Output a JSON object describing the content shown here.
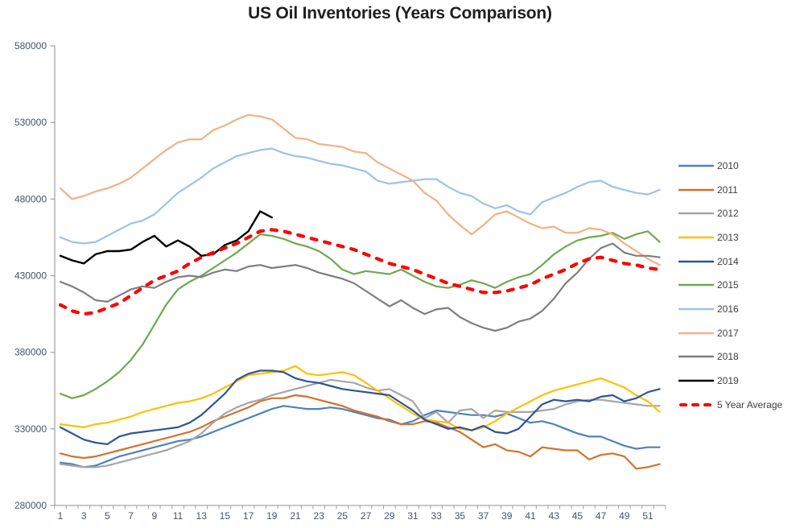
{
  "chart_data": {
    "type": "line",
    "title": "US Oil Inventories (Years Comparison)",
    "xlabel": "",
    "ylabel": "",
    "x_unit": "week_of_year",
    "x_range": [
      1,
      52
    ],
    "x_tick_labels": [
      1,
      3,
      5,
      7,
      9,
      11,
      13,
      15,
      17,
      19,
      21,
      23,
      25,
      27,
      29,
      31,
      33,
      35,
      37,
      39,
      41,
      43,
      45,
      47,
      49,
      51
    ],
    "ylim": [
      280000,
      580000
    ],
    "y_tick_step": 50000,
    "y_tick_labels": [
      "280000",
      "330000",
      "380000",
      "430000",
      "480000",
      "530000",
      "580000"
    ],
    "grid": false,
    "legend_position": "right",
    "axis_color": "#a6a6a6",
    "axis_label_color": "#44546a",
    "series": [
      {
        "name": "2010",
        "color": "#4E81BD",
        "dashed": false,
        "width": 2.2,
        "values": [
          308000,
          307000,
          305000,
          306000,
          309000,
          312000,
          314000,
          316000,
          318000,
          320000,
          322000,
          323000,
          325000,
          328000,
          331000,
          334000,
          337000,
          340000,
          343000,
          345000,
          344000,
          343000,
          343000,
          344000,
          343000,
          341000,
          339000,
          337000,
          336000,
          333000,
          335000,
          339000,
          342000,
          341000,
          340000,
          339000,
          339000,
          338000,
          340000,
          337000,
          334000,
          335000,
          333000,
          330000,
          327000,
          325000,
          325000,
          322000,
          319000,
          317000,
          318000,
          318000
        ]
      },
      {
        "name": "2011",
        "color": "#D4722C",
        "dashed": false,
        "width": 2.2,
        "values": [
          314000,
          312000,
          311000,
          312000,
          314000,
          316000,
          318000,
          320000,
          322000,
          324000,
          326000,
          328000,
          331000,
          335000,
          338000,
          341000,
          344000,
          348000,
          350000,
          350000,
          352000,
          351000,
          349000,
          347000,
          345000,
          342000,
          340000,
          338000,
          335000,
          333000,
          333000,
          335000,
          334000,
          331000,
          328000,
          323000,
          318000,
          320000,
          316000,
          315000,
          312000,
          318000,
          317000,
          316000,
          316000,
          310000,
          313000,
          314000,
          312000,
          304000,
          305000,
          307000
        ]
      },
      {
        "name": "2012",
        "color": "#A6A6A6",
        "dashed": false,
        "width": 2.2,
        "values": [
          307000,
          306000,
          305000,
          305000,
          306000,
          308000,
          310000,
          312000,
          314000,
          316000,
          319000,
          322000,
          327000,
          334000,
          340000,
          344000,
          347000,
          349000,
          352000,
          354000,
          356000,
          358000,
          360000,
          362000,
          361000,
          360000,
          357000,
          355000,
          356000,
          352000,
          348000,
          337000,
          341000,
          334000,
          342000,
          343000,
          337000,
          342000,
          341000,
          341000,
          341000,
          342000,
          343000,
          346000,
          348000,
          349000,
          349000,
          348000,
          347000,
          346000,
          345000,
          345000
        ]
      },
      {
        "name": "2013",
        "color": "#FFC000",
        "dashed": false,
        "width": 2.2,
        "values": [
          333000,
          332000,
          331000,
          333000,
          334000,
          336000,
          338000,
          341000,
          343000,
          345000,
          347000,
          348000,
          350000,
          353000,
          357000,
          361000,
          365000,
          366000,
          367000,
          368000,
          371000,
          366000,
          365000,
          366000,
          367000,
          365000,
          360000,
          355000,
          350000,
          345000,
          340000,
          336000,
          335000,
          334000,
          330000,
          329000,
          331000,
          335000,
          340000,
          344000,
          348000,
          352000,
          355000,
          357000,
          359000,
          361000,
          363000,
          360000,
          357000,
          352000,
          348000,
          341000
        ]
      },
      {
        "name": "2014",
        "color": "#2E5597",
        "dashed": false,
        "width": 2.2,
        "values": [
          331000,
          327000,
          323000,
          321000,
          320000,
          325000,
          327000,
          328000,
          329000,
          330000,
          331000,
          334000,
          339000,
          346000,
          353000,
          362000,
          366000,
          368000,
          368000,
          367000,
          363000,
          361000,
          360000,
          358000,
          356000,
          355000,
          354000,
          353000,
          352000,
          347000,
          342000,
          336000,
          333000,
          330000,
          331000,
          329000,
          332000,
          328000,
          327000,
          330000,
          338000,
          346000,
          349000,
          348000,
          349000,
          348000,
          351000,
          352000,
          348000,
          350000,
          354000,
          356000
        ]
      },
      {
        "name": "2015",
        "color": "#6FA84F",
        "dashed": false,
        "width": 2.2,
        "values": [
          353000,
          350000,
          352000,
          356000,
          361000,
          367000,
          375000,
          385000,
          398000,
          411000,
          421000,
          426000,
          430000,
          435000,
          440000,
          445000,
          451000,
          457000,
          456000,
          454000,
          451000,
          449000,
          446000,
          441000,
          434000,
          431000,
          433000,
          432000,
          431000,
          434000,
          430000,
          426000,
          423000,
          422000,
          424000,
          427000,
          425000,
          422000,
          426000,
          429000,
          431000,
          437000,
          444000,
          449000,
          453000,
          455000,
          456000,
          458000,
          454000,
          457000,
          459000,
          452000
        ]
      },
      {
        "name": "2016",
        "color": "#9DC3E6",
        "dashed": false,
        "width": 2.2,
        "values": [
          455000,
          452000,
          451000,
          452000,
          456000,
          460000,
          464000,
          466000,
          470000,
          477000,
          484000,
          489000,
          494000,
          500000,
          504000,
          508000,
          510000,
          512000,
          513000,
          510000,
          508000,
          507000,
          505000,
          503000,
          502000,
          500000,
          498000,
          492000,
          490000,
          491000,
          492000,
          493000,
          493000,
          488000,
          484000,
          482000,
          477000,
          474000,
          476000,
          472000,
          470000,
          478000,
          481000,
          484000,
          488000,
          491000,
          492000,
          488000,
          486000,
          484000,
          483000,
          486000
        ]
      },
      {
        "name": "2017",
        "color": "#F4B183",
        "dashed": false,
        "width": 2.2,
        "values": [
          487000,
          480000,
          482000,
          485000,
          487000,
          490000,
          494000,
          500000,
          506000,
          512000,
          517000,
          519000,
          519000,
          525000,
          528000,
          532000,
          535000,
          534000,
          532000,
          526000,
          520000,
          519000,
          516000,
          515000,
          514000,
          511000,
          510000,
          504000,
          500000,
          496000,
          492000,
          484000,
          479000,
          470000,
          463000,
          457000,
          463000,
          470000,
          472000,
          468000,
          464000,
          461000,
          462000,
          458000,
          458000,
          461000,
          460000,
          457000,
          451000,
          446000,
          441000,
          437000
        ]
      },
      {
        "name": "2018",
        "color": "#7F7F7F",
        "dashed": false,
        "width": 2.2,
        "values": [
          426000,
          423000,
          419000,
          414000,
          413000,
          417000,
          421000,
          423000,
          422000,
          426000,
          429000,
          430000,
          429000,
          432000,
          434000,
          433000,
          436000,
          437000,
          435000,
          436000,
          437000,
          435000,
          432000,
          430000,
          428000,
          425000,
          420000,
          415000,
          410000,
          414000,
          409000,
          405000,
          408000,
          409000,
          403000,
          399000,
          396000,
          394000,
          396000,
          400000,
          402000,
          407000,
          415000,
          425000,
          432000,
          441000,
          448000,
          451000,
          445000,
          443000,
          443000,
          442000
        ]
      },
      {
        "name": "2019",
        "color": "#000000",
        "dashed": false,
        "width": 2.4,
        "values": [
          443000,
          440000,
          438000,
          444000,
          446000,
          446000,
          447000,
          452000,
          456000,
          449000,
          453000,
          449000,
          443000,
          444000,
          450000,
          453000,
          459000,
          472000,
          468000
        ]
      },
      {
        "name": "5 Year Average",
        "color": "#FF0000",
        "dashed": true,
        "width": 4.2,
        "values": [
          411000,
          407000,
          405000,
          406000,
          409000,
          412000,
          417000,
          422000,
          427000,
          430000,
          433000,
          438000,
          442000,
          445000,
          448000,
          451000,
          455000,
          459000,
          460000,
          459000,
          457000,
          455000,
          453000,
          451000,
          449000,
          447000,
          444000,
          441000,
          438000,
          436000,
          434000,
          431000,
          428000,
          425000,
          423000,
          421000,
          419000,
          419000,
          420000,
          422000,
          424000,
          428000,
          431000,
          434000,
          438000,
          441000,
          442000,
          440000,
          438000,
          437000,
          435000,
          434000
        ]
      }
    ]
  }
}
